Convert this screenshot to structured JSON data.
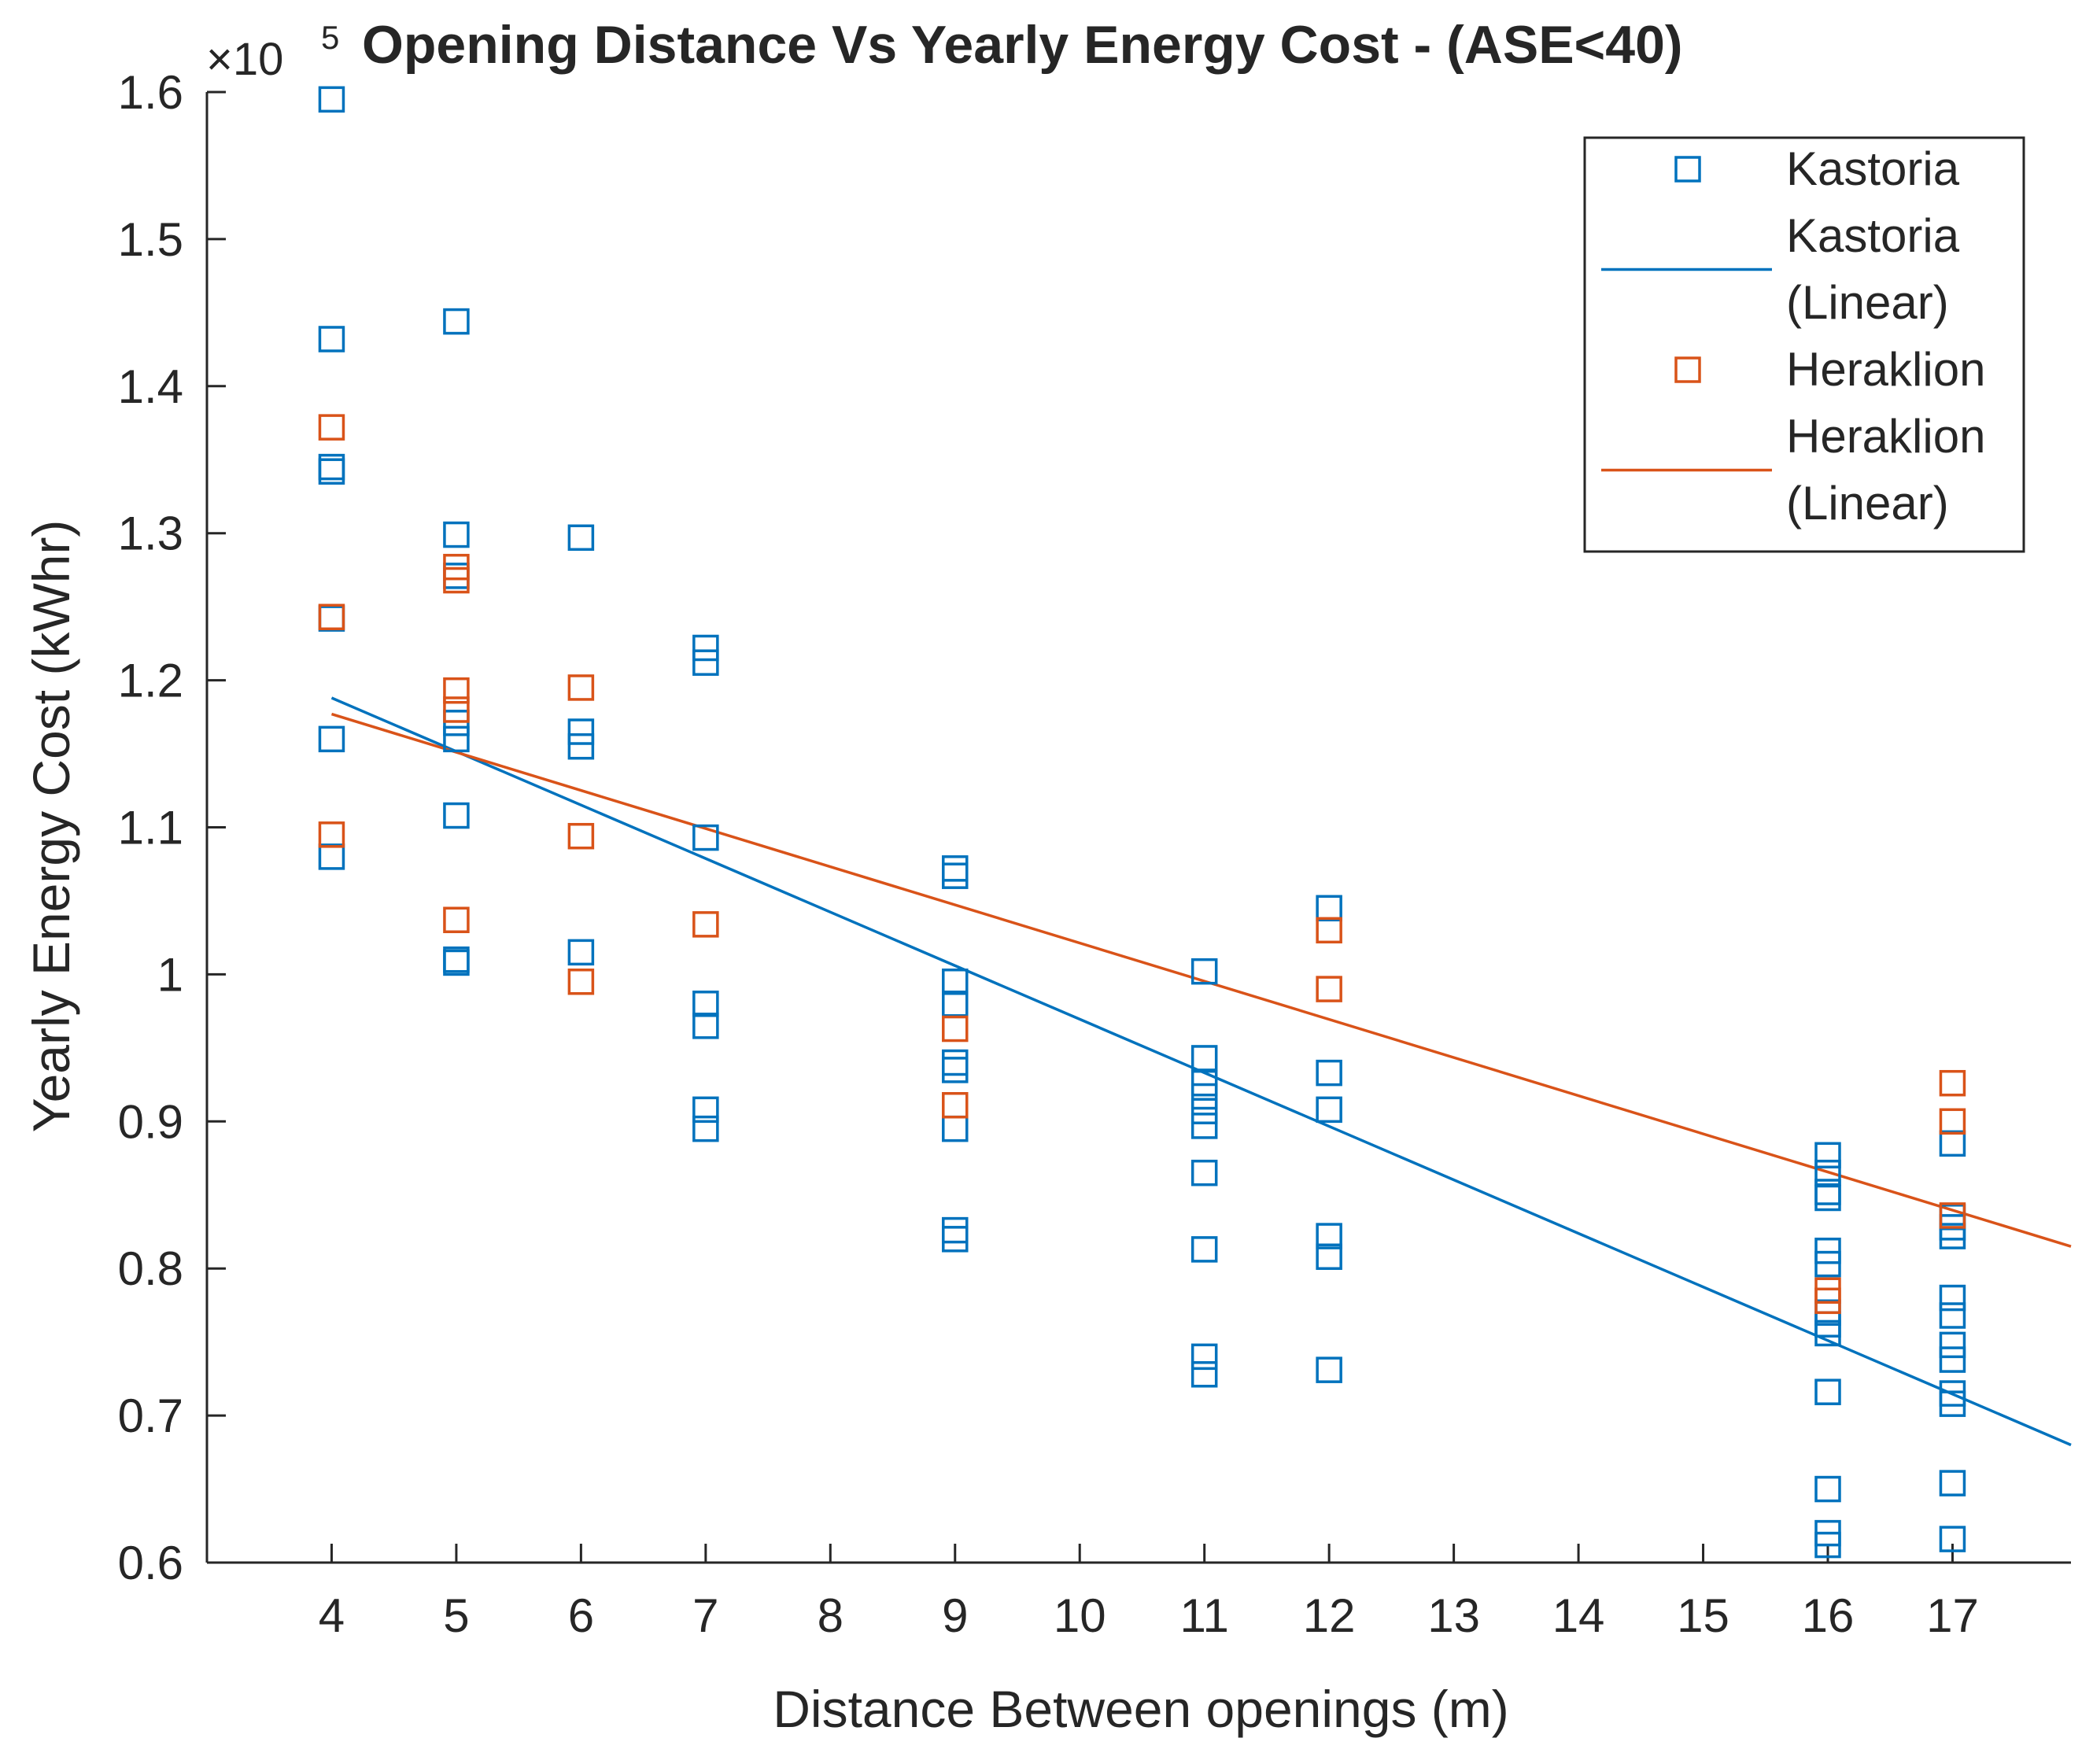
{
  "chart_data": {
    "type": "scatter",
    "title": "Opening Distance Vs Yearly Energy Cost - (ASE<40)",
    "xlabel": "Distance Between openings (m)",
    "ylabel": "Yearly Energy Cost (kWhr)",
    "y_exponent_label": "×10",
    "y_exponent_power": "5",
    "xlim": [
      3,
      17.95
    ],
    "ylim": [
      0.6,
      1.6
    ],
    "x_ticks": [
      4,
      5,
      6,
      7,
      8,
      9,
      10,
      11,
      12,
      13,
      14,
      15,
      16,
      17
    ],
    "x_tick_labels": [
      "4",
      "5",
      "6",
      "7",
      "8",
      "9",
      "10",
      "11",
      "12",
      "13",
      "14",
      "15",
      "16",
      "17"
    ],
    "y_ticks": [
      0.6,
      0.7,
      0.8,
      0.9,
      1.0,
      1.1,
      1.2,
      1.3,
      1.4,
      1.5,
      1.6
    ],
    "y_tick_labels": [
      "0.6",
      "0.7",
      "0.8",
      "0.9",
      "1",
      "1.1",
      "1.2",
      "1.3",
      "1.4",
      "1.5",
      "1.6"
    ],
    "grid": false,
    "legend_position": "top-right",
    "legend": [
      {
        "label": "Kastoria",
        "kind": "marker",
        "color": "#0072BD"
      },
      {
        "label": "Kastoria\n(Linear)",
        "kind": "line",
        "color": "#0072BD"
      },
      {
        "label": "Heraklion",
        "kind": "marker",
        "color": "#D95319"
      },
      {
        "label": "Heraklion\n(Linear)",
        "kind": "line",
        "color": "#D95319"
      }
    ],
    "series": [
      {
        "name": "Kastoria",
        "type": "scatter",
        "marker": "square",
        "color": "#0072BD",
        "points": [
          [
            4,
            1.595
          ],
          [
            4,
            1.432
          ],
          [
            4,
            1.345
          ],
          [
            4,
            1.342
          ],
          [
            4,
            1.242
          ],
          [
            4,
            1.16
          ],
          [
            4,
            1.08
          ],
          [
            5,
            1.444
          ],
          [
            5,
            1.299
          ],
          [
            5,
            1.271
          ],
          [
            5,
            1.171
          ],
          [
            5,
            1.16
          ],
          [
            5,
            1.108
          ],
          [
            5,
            1.01
          ],
          [
            5,
            1.008
          ],
          [
            6,
            1.297
          ],
          [
            6,
            1.165
          ],
          [
            6,
            1.155
          ],
          [
            6,
            1.015
          ],
          [
            7,
            1.222
          ],
          [
            7,
            1.212
          ],
          [
            7,
            1.093
          ],
          [
            7,
            0.98
          ],
          [
            7,
            0.965
          ],
          [
            7,
            0.908
          ],
          [
            7,
            0.895
          ],
          [
            9,
            1.072
          ],
          [
            9,
            1.067
          ],
          [
            9,
            0.995
          ],
          [
            9,
            0.98
          ],
          [
            9,
            0.94
          ],
          [
            9,
            0.935
          ],
          [
            9,
            0.895
          ],
          [
            9,
            0.826
          ],
          [
            9,
            0.82
          ],
          [
            11,
            1.002
          ],
          [
            11,
            0.943
          ],
          [
            11,
            0.926
          ],
          [
            11,
            0.917
          ],
          [
            11,
            0.907
          ],
          [
            11,
            0.897
          ],
          [
            11,
            0.865
          ],
          [
            11,
            0.813
          ],
          [
            11,
            0.74
          ],
          [
            11,
            0.728
          ],
          [
            12,
            1.045
          ],
          [
            12,
            0.933
          ],
          [
            12,
            0.908
          ],
          [
            12,
            0.822
          ],
          [
            12,
            0.808
          ],
          [
            12,
            0.731
          ],
          [
            16,
            0.877
          ],
          [
            16,
            0.865
          ],
          [
            16,
            0.852
          ],
          [
            16,
            0.848
          ],
          [
            16,
            0.812
          ],
          [
            16,
            0.803
          ],
          [
            16,
            0.77
          ],
          [
            16,
            0.762
          ],
          [
            16,
            0.756
          ],
          [
            16,
            0.716
          ],
          [
            16,
            0.65
          ],
          [
            16,
            0.62
          ],
          [
            16,
            0.612
          ],
          [
            17,
            0.885
          ],
          [
            17,
            0.835
          ],
          [
            17,
            0.828
          ],
          [
            17,
            0.822
          ],
          [
            17,
            0.78
          ],
          [
            17,
            0.768
          ],
          [
            17,
            0.748
          ],
          [
            17,
            0.738
          ],
          [
            17,
            0.715
          ],
          [
            17,
            0.708
          ],
          [
            17,
            0.654
          ],
          [
            17,
            0.616
          ]
        ]
      },
      {
        "name": "Kastoria (Linear)",
        "type": "line",
        "color": "#0072BD",
        "points": [
          [
            4,
            1.188
          ],
          [
            17.95,
            0.68
          ]
        ]
      },
      {
        "name": "Heraklion",
        "type": "scatter",
        "marker": "square",
        "color": "#D95319",
        "points": [
          [
            4,
            1.372
          ],
          [
            4,
            1.243
          ],
          [
            4,
            1.095
          ],
          [
            5,
            1.277
          ],
          [
            5,
            1.268
          ],
          [
            5,
            1.193
          ],
          [
            5,
            1.18
          ],
          [
            5,
            1.037
          ],
          [
            6,
            1.195
          ],
          [
            6,
            1.094
          ],
          [
            6,
            0.995
          ],
          [
            7,
            1.034
          ],
          [
            9,
            0.963
          ],
          [
            9,
            0.911
          ],
          [
            12,
            1.03
          ],
          [
            12,
            0.99
          ],
          [
            16,
            0.785
          ],
          [
            16,
            0.778
          ],
          [
            17,
            0.926
          ],
          [
            17,
            0.9
          ],
          [
            17,
            0.836
          ]
        ]
      },
      {
        "name": "Heraklion (Linear)",
        "type": "line",
        "color": "#D95319",
        "points": [
          [
            4,
            1.177
          ],
          [
            17.95,
            0.815
          ]
        ]
      }
    ]
  }
}
